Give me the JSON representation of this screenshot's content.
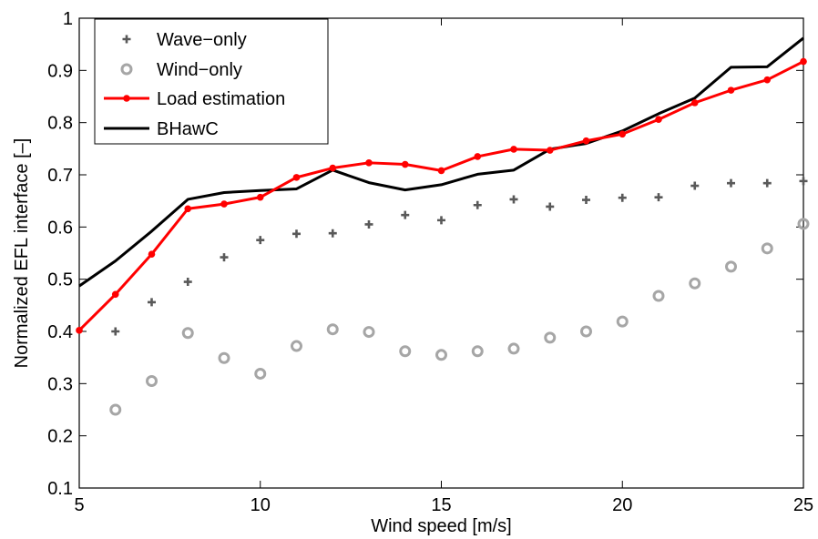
{
  "chart_data": {
    "type": "line",
    "xlabel": "Wind speed [m/s]",
    "ylabel": "Normalized EFL interface [–]",
    "xlim": [
      5,
      25
    ],
    "ylim": [
      0.1,
      1
    ],
    "xticks": [
      "5",
      "10",
      "15",
      "20",
      "25"
    ],
    "yticks": [
      "0.1",
      "0.2",
      "0.3",
      "0.4",
      "0.5",
      "0.6",
      "0.7",
      "0.8",
      "0.9",
      "1"
    ],
    "grid": false,
    "legend_position": "top-left",
    "series": [
      {
        "name": "Wave−only",
        "style": "plus-markers",
        "color": "#595959",
        "x": [
          6,
          7,
          8,
          9,
          10,
          11,
          12,
          13,
          14,
          15,
          16,
          17,
          18,
          19,
          20,
          21,
          22,
          23,
          24,
          25
        ],
        "values": [
          0.4,
          0.456,
          0.495,
          0.542,
          0.575,
          0.587,
          0.588,
          0.605,
          0.623,
          0.613,
          0.642,
          0.653,
          0.639,
          0.652,
          0.656,
          0.657,
          0.679,
          0.684,
          0.684,
          0.688
        ]
      },
      {
        "name": "Wind−only",
        "style": "circle-markers",
        "color": "#a6a6a6",
        "x": [
          6,
          7,
          8,
          9,
          10,
          11,
          12,
          13,
          14,
          15,
          16,
          17,
          18,
          19,
          20,
          21,
          22,
          23,
          24,
          25
        ],
        "values": [
          0.25,
          0.305,
          0.397,
          0.349,
          0.319,
          0.372,
          0.404,
          0.399,
          0.362,
          0.355,
          0.362,
          0.367,
          0.388,
          0.4,
          0.419,
          0.468,
          0.492,
          0.524,
          0.559,
          0.606
        ]
      },
      {
        "name": "Load estimation",
        "style": "line-dot",
        "color": "#ff0000",
        "x": [
          5,
          6,
          7,
          8,
          9,
          10,
          11,
          12,
          13,
          14,
          15,
          16,
          17,
          18,
          19,
          20,
          21,
          22,
          23,
          24,
          25
        ],
        "values": [
          0.402,
          0.471,
          0.548,
          0.635,
          0.644,
          0.657,
          0.695,
          0.713,
          0.723,
          0.72,
          0.708,
          0.735,
          0.749,
          0.747,
          0.765,
          0.778,
          0.806,
          0.838,
          0.862,
          0.882,
          0.917
        ]
      },
      {
        "name": "BHawC",
        "style": "line",
        "color": "#000000",
        "x": [
          5,
          6,
          7,
          8,
          9,
          10,
          11,
          12,
          13,
          14,
          15,
          16,
          17,
          18,
          19,
          20,
          21,
          22,
          23,
          24,
          25
        ],
        "values": [
          0.487,
          0.535,
          0.592,
          0.653,
          0.666,
          0.67,
          0.673,
          0.709,
          0.685,
          0.671,
          0.681,
          0.701,
          0.709,
          0.749,
          0.76,
          0.784,
          0.817,
          0.847,
          0.906,
          0.907,
          0.962
        ]
      }
    ]
  }
}
